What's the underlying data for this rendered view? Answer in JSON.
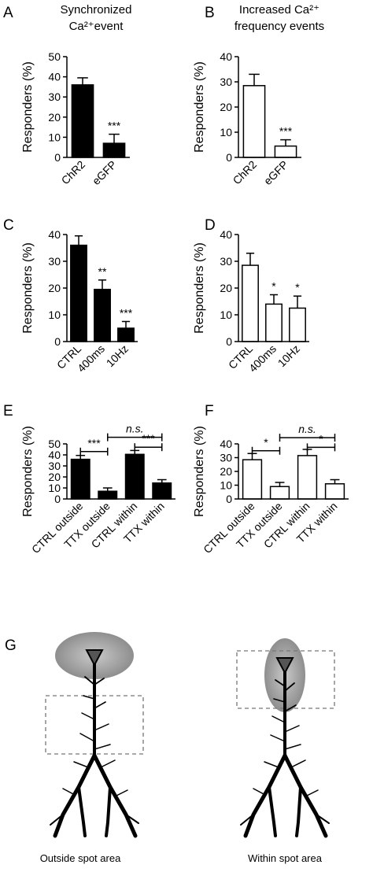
{
  "panels": [
    {
      "letter": "A",
      "title_lines": [
        "Synchronized",
        "Ca²⁺event"
      ],
      "ylabel": "Responders (%)",
      "ylim": [
        0,
        50
      ],
      "yticks": [
        "0",
        "10",
        "20",
        "30",
        "40",
        "50"
      ],
      "fill": "#000000",
      "categories": [
        "ChR2",
        "eGFP"
      ],
      "values": [
        36,
        7
      ],
      "errors": [
        3.5,
        4.5
      ],
      "bar_sig": [
        "",
        "***"
      ],
      "brackets": []
    },
    {
      "letter": "B",
      "title_lines": [
        "Increased Ca²⁺",
        "frequency events"
      ],
      "ylabel": "Responders (%)",
      "ylim": [
        0,
        40
      ],
      "yticks": [
        "0",
        "10",
        "20",
        "30",
        "40"
      ],
      "fill": "#ffffff",
      "categories": [
        "ChR2",
        "eGFP"
      ],
      "values": [
        28.5,
        4.5
      ],
      "errors": [
        4.5,
        2.5
      ],
      "bar_sig": [
        "",
        "***"
      ],
      "brackets": []
    },
    {
      "letter": "C",
      "title_lines": [],
      "ylabel": "Responders (%)",
      "ylim": [
        0,
        40
      ],
      "yticks": [
        "0",
        "10",
        "20",
        "30",
        "40"
      ],
      "fill": "#000000",
      "categories": [
        "CTRL",
        "400ms",
        "10Hz"
      ],
      "values": [
        36,
        19.5,
        5
      ],
      "errors": [
        3.5,
        3.5,
        2.5
      ],
      "bar_sig": [
        "",
        "**",
        "***"
      ],
      "brackets": []
    },
    {
      "letter": "D",
      "title_lines": [],
      "ylabel": "Responders (%)",
      "ylim": [
        0,
        40
      ],
      "yticks": [
        "0",
        "10",
        "20",
        "30",
        "40"
      ],
      "fill": "#ffffff",
      "categories": [
        "CTRL",
        "400ms",
        "10Hz"
      ],
      "values": [
        28.5,
        14,
        12.5
      ],
      "errors": [
        4.5,
        3.5,
        4.5
      ],
      "bar_sig": [
        "",
        "*",
        "*"
      ],
      "brackets": []
    },
    {
      "letter": "E",
      "title_lines": [],
      "ylabel": "Responders (%)",
      "ylim": [
        0,
        50
      ],
      "yticks": [
        "0",
        "10",
        "20",
        "30",
        "40",
        "50"
      ],
      "fill": "#000000",
      "categories": [
        "CTRL outside",
        "TTX outside",
        "CTRL within",
        "TTX within"
      ],
      "values": [
        36,
        7,
        40.5,
        14.5
      ],
      "errors": [
        3.5,
        3,
        3.5,
        3
      ],
      "bar_sig": [
        "",
        "",
        "",
        ""
      ],
      "brackets": [
        {
          "from": 0,
          "to": 1,
          "level": 43,
          "label": "***",
          "italic": false
        },
        {
          "from": 2,
          "to": 3,
          "level": 47,
          "label": "***",
          "italic": false
        },
        {
          "from": 1,
          "to": 3,
          "level": 56,
          "label": "n.s.",
          "italic": true
        }
      ]
    },
    {
      "letter": "F",
      "title_lines": [],
      "ylabel": "Responders (%)",
      "ylim": [
        0,
        40
      ],
      "yticks": [
        "0",
        "10",
        "20",
        "30",
        "40"
      ],
      "fill": "#ffffff",
      "categories": [
        "CTRL outside",
        "TTX outside",
        "CTRL within",
        "TTX within"
      ],
      "values": [
        28.5,
        9,
        31.5,
        11
      ],
      "errors": [
        4.5,
        3,
        4.5,
        3
      ],
      "bar_sig": [
        "",
        "",
        "",
        ""
      ],
      "brackets": [
        {
          "from": 0,
          "to": 1,
          "level": 35,
          "label": "*",
          "italic": false
        },
        {
          "from": 2,
          "to": 3,
          "level": 37.5,
          "label": "*",
          "italic": false
        },
        {
          "from": 1,
          "to": 3,
          "level": 44.5,
          "label": "n.s.",
          "italic": true
        }
      ]
    }
  ],
  "panel_g": {
    "letter": "G",
    "captions": [
      "Outside spot area",
      "Within spot area"
    ]
  },
  "chart_data": [
    {
      "type": "bar",
      "title": "Synchronized Ca²⁺event",
      "categories": [
        "ChR2",
        "eGFP"
      ],
      "values": [
        36,
        7
      ],
      "ylabel": "Responders (%)",
      "ylim": [
        0,
        50
      ]
    },
    {
      "type": "bar",
      "title": "Increased Ca²⁺ frequency events",
      "categories": [
        "ChR2",
        "eGFP"
      ],
      "values": [
        28.5,
        4.5
      ],
      "ylabel": "Responders (%)",
      "ylim": [
        0,
        40
      ]
    },
    {
      "type": "bar",
      "categories": [
        "CTRL",
        "400ms",
        "10Hz"
      ],
      "values": [
        36,
        19.5,
        5
      ],
      "ylabel": "Responders (%)",
      "ylim": [
        0,
        40
      ]
    },
    {
      "type": "bar",
      "categories": [
        "CTRL",
        "400ms",
        "10Hz"
      ],
      "values": [
        28.5,
        14,
        12.5
      ],
      "ylabel": "Responders (%)",
      "ylim": [
        0,
        40
      ]
    },
    {
      "type": "bar",
      "categories": [
        "CTRL outside",
        "TTX outside",
        "CTRL within",
        "TTX within"
      ],
      "values": [
        36,
        7,
        40.5,
        14.5
      ],
      "ylabel": "Responders (%)",
      "ylim": [
        0,
        50
      ]
    },
    {
      "type": "bar",
      "categories": [
        "CTRL outside",
        "TTX outside",
        "CTRL within",
        "TTX within"
      ],
      "values": [
        28.5,
        9,
        31.5,
        11
      ],
      "ylabel": "Responders (%)",
      "ylim": [
        0,
        40
      ]
    }
  ]
}
